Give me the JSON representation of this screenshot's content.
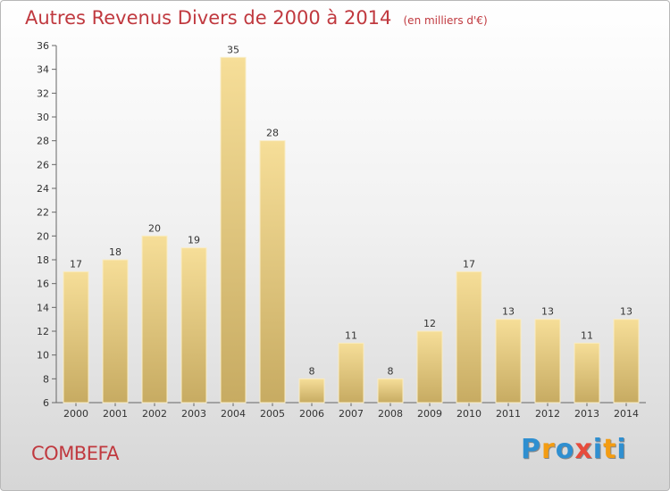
{
  "chart_data": {
    "type": "bar",
    "title": "Autres Revenus Divers de 2000 à 2014",
    "subtitle": "(en milliers d'€)",
    "categories": [
      "2000",
      "2001",
      "2002",
      "2003",
      "2004",
      "2005",
      "2006",
      "2007",
      "2008",
      "2009",
      "2010",
      "2011",
      "2012",
      "2013",
      "2014"
    ],
    "values": [
      17,
      18,
      20,
      19,
      35,
      28,
      8,
      11,
      8,
      12,
      17,
      13,
      13,
      11,
      13
    ],
    "ylim": [
      6,
      36
    ],
    "yticks": [
      6,
      8,
      10,
      12,
      14,
      16,
      18,
      20,
      22,
      24,
      26,
      28,
      30,
      32,
      34,
      36
    ],
    "grid": false,
    "bar_color": "#e9cf86",
    "title_color": "#c0393f"
  },
  "footer": {
    "place": "COMBEFA",
    "brand_letters": [
      "P",
      "r",
      "o",
      "x",
      "i",
      "t",
      "i"
    ],
    "brand_colors": [
      "#2f8fd0",
      "#f39c12",
      "#2f8fd0",
      "#e74c3c",
      "#2f8fd0",
      "#f39c12",
      "#2f8fd0"
    ]
  }
}
